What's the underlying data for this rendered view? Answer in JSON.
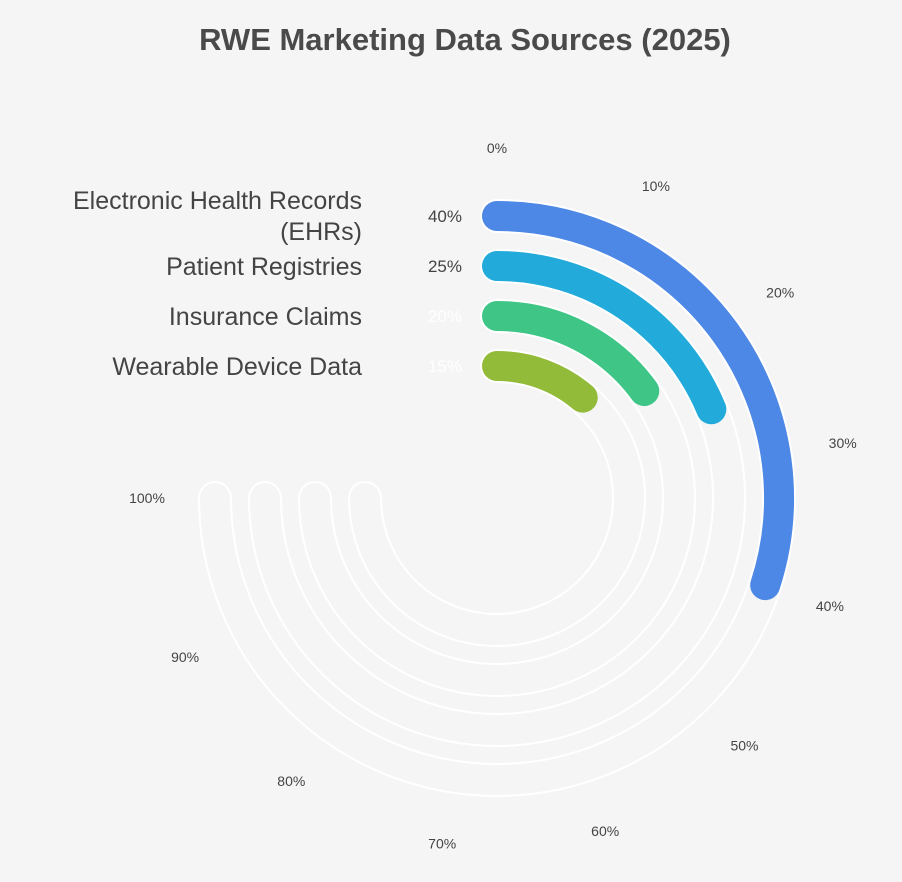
{
  "chart_data": {
    "type": "radial-bar",
    "title": "RWE Marketing Data Sources (2025)",
    "scale_ticks": [
      "0%",
      "10%",
      "20%",
      "30%",
      "40%",
      "50%",
      "60%",
      "70%",
      "80%",
      "90%",
      "100%"
    ],
    "axis_max": 100,
    "series": [
      {
        "name": "Electronic Health Records (EHRs)",
        "label_lines": [
          "Electronic Health Records",
          "(EHRs)"
        ],
        "value": 40,
        "value_label": "40%",
        "color": "#4e88e6",
        "value_label_color": "#444444"
      },
      {
        "name": "Patient Registries",
        "label_lines": [
          "Patient Registries"
        ],
        "value": 25,
        "value_label": "25%",
        "color": "#22aadb",
        "value_label_color": "#444444"
      },
      {
        "name": "Insurance Claims",
        "label_lines": [
          "Insurance Claims"
        ],
        "value": 20,
        "value_label": "20%",
        "color": "#3fc687",
        "value_label_color": "#ffffff"
      },
      {
        "name": "Wearable Device Data",
        "label_lines": [
          "Wearable Device Data"
        ],
        "value": 15,
        "value_label": "15%",
        "color": "#93bb3a",
        "value_label_color": "#ffffff"
      }
    ],
    "track_color": "#ffffff",
    "legend": "left"
  }
}
